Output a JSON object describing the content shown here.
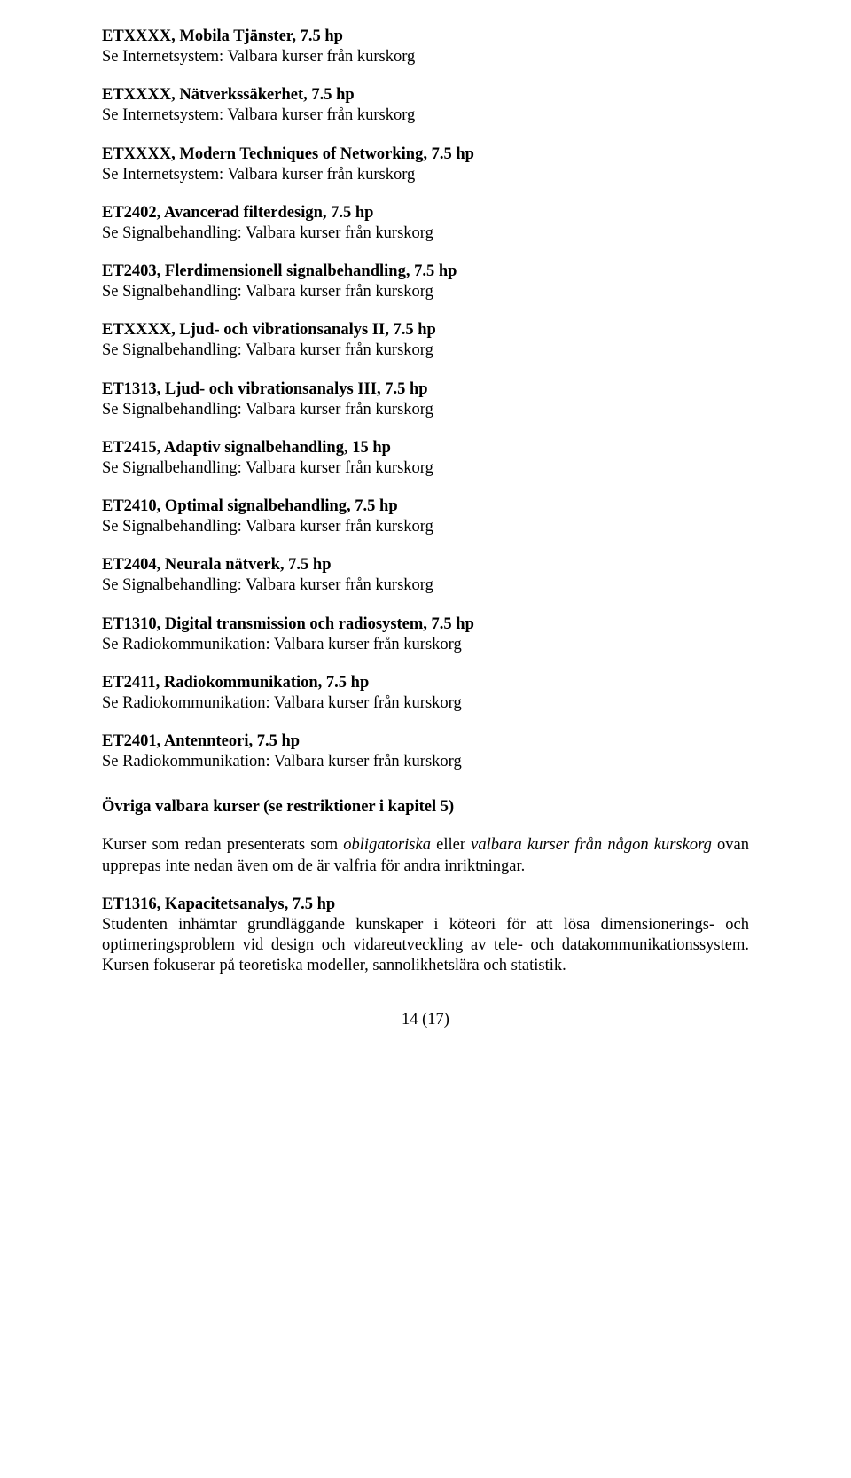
{
  "courses": [
    {
      "title": "ETXXXX, Mobila Tjänster, 7.5 hp",
      "note": "Se Internetsystem: Valbara kurser från kurskorg"
    },
    {
      "title": "ETXXXX, Nätverkssäkerhet, 7.5 hp",
      "note": "Se Internetsystem: Valbara kurser från kurskorg"
    },
    {
      "title": "ETXXXX, Modern Techniques of Networking, 7.5 hp",
      "note": "Se Internetsystem: Valbara kurser från kurskorg"
    },
    {
      "title": "ET2402, Avancerad filterdesign, 7.5 hp",
      "note": "Se Signalbehandling: Valbara kurser från kurskorg"
    },
    {
      "title": "ET2403, Flerdimensionell signalbehandling, 7.5 hp",
      "note": "Se Signalbehandling: Valbara kurser från kurskorg"
    },
    {
      "title": "ETXXXX, Ljud- och vibrationsanalys II, 7.5 hp",
      "note": "Se Signalbehandling: Valbara kurser från kurskorg"
    },
    {
      "title": "ET1313, Ljud- och vibrationsanalys III, 7.5 hp",
      "note": "Se Signalbehandling: Valbara kurser från kurskorg"
    },
    {
      "title": "ET2415, Adaptiv signalbehandling, 15 hp",
      "note": "Se Signalbehandling: Valbara kurser från kurskorg"
    },
    {
      "title": "ET2410, Optimal signalbehandling, 7.5 hp",
      "note": "Se Signalbehandling: Valbara kurser från kurskorg"
    },
    {
      "title": "ET2404, Neurala nätverk, 7.5 hp",
      "note": "Se Signalbehandling: Valbara kurser från kurskorg"
    },
    {
      "title": "ET1310, Digital transmission och radiosystem, 7.5 hp",
      "note": "Se Radiokommunikation: Valbara kurser från kurskorg"
    },
    {
      "title": "ET2411, Radiokommunikation, 7.5 hp",
      "note": "Se Radiokommunikation: Valbara kurser från kurskorg"
    },
    {
      "title": "ET2401, Antennteori, 7.5 hp",
      "note": "Se Radiokommunikation: Valbara kurser från kurskorg"
    }
  ],
  "section_heading": "Övriga valbara kurser (se restriktioner i kapitel 5)",
  "para_pre": "Kurser som redan presenterats som ",
  "para_it1": "obligatoriska",
  "para_mid1": " eller ",
  "para_it2": "valbara kurser från någon kurskorg",
  "para_post": " ovan upprepas inte nedan även om de är valfria för andra inriktningar.",
  "final_course": {
    "title": "ET1316, Kapacitetsanalys, 7.5 hp",
    "desc": "Studenten inhämtar grundläggande kunskaper i köteori för att lösa dimensionerings- och optimeringsproblem vid design och vidareutveckling av tele- och datakommunikationssystem. Kursen fokuserar på teoretiska modeller, sannolikhetslära och statistik."
  },
  "pagenum": "14 (17)"
}
